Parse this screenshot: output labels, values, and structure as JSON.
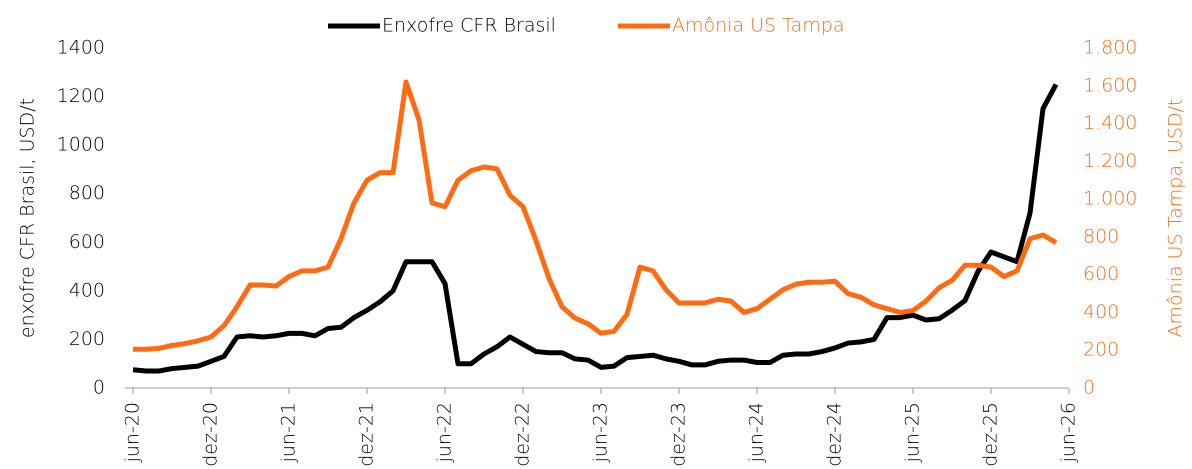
{
  "chart_data": {
    "type": "line",
    "categories": [
      "jun-20",
      null,
      null,
      null,
      null,
      null,
      "dez-20",
      null,
      null,
      null,
      null,
      null,
      "jun-21",
      null,
      null,
      null,
      null,
      null,
      "dez-21",
      null,
      null,
      null,
      null,
      null,
      "jun-22",
      null,
      null,
      null,
      null,
      null,
      "dez-22",
      null,
      null,
      null,
      null,
      null,
      "jun-23",
      null,
      null,
      null,
      null,
      null,
      "dez-23",
      null,
      null,
      null,
      null,
      null,
      "jun-24",
      null,
      null,
      null,
      null,
      null,
      "dez-24",
      null,
      null,
      null,
      null,
      null,
      "jun-25",
      null,
      null,
      null,
      null,
      null,
      "dez-25",
      null,
      null,
      null,
      null,
      null,
      "jun-26"
    ],
    "series": [
      {
        "name": "Enxofre CFR Brasil",
        "color": "#000000",
        "axis": "y",
        "values": [
          75,
          70,
          70,
          80,
          85,
          90,
          110,
          130,
          210,
          215,
          210,
          215,
          225,
          225,
          215,
          245,
          250,
          290,
          320,
          355,
          400,
          520,
          520,
          520,
          430,
          100,
          100,
          140,
          170,
          210,
          180,
          150,
          145,
          145,
          120,
          115,
          85,
          90,
          125,
          130,
          135,
          120,
          110,
          95,
          95,
          110,
          115,
          115,
          105,
          105,
          135,
          140,
          140,
          150,
          165,
          185,
          190,
          200,
          290,
          290,
          300,
          280,
          285,
          320,
          360,
          480,
          560,
          540,
          520,
          720,
          1150,
          1250,
          null
        ]
      },
      {
        "name": "Amônia US Tampa",
        "color": "#ff6a13",
        "axis": "y2",
        "values": [
          205,
          205,
          210,
          225,
          235,
          250,
          270,
          330,
          430,
          545,
          545,
          540,
          590,
          620,
          620,
          640,
          790,
          980,
          1100,
          1140,
          1140,
          1620,
          1420,
          980,
          960,
          1100,
          1150,
          1170,
          1160,
          1020,
          960,
          780,
          580,
          430,
          370,
          340,
          290,
          300,
          390,
          640,
          620,
          520,
          450,
          450,
          450,
          470,
          460,
          400,
          420,
          470,
          520,
          550,
          560,
          560,
          565,
          500,
          480,
          440,
          420,
          400,
          410,
          460,
          530,
          570,
          650,
          650,
          640,
          590,
          620,
          790,
          810,
          770,
          null
        ]
      }
    ],
    "ylabel": "enxofre CFR Brasil, USD/t",
    "y2label": "Amônia US Tampa, USD/t",
    "ylim": [
      0,
      1400
    ],
    "yticks": [
      0,
      200,
      400,
      600,
      800,
      1000,
      1200,
      1400
    ],
    "y2lim": [
      0,
      1800
    ],
    "y2ticks": [
      0,
      200,
      400,
      600,
      800,
      {
        "value": 1000,
        "label": "1.000"
      },
      {
        "value": 1200,
        "label": "1.200"
      },
      {
        "value": 1400,
        "label": "1.400"
      },
      {
        "value": 1600,
        "label": "1.600"
      },
      {
        "value": 1800,
        "label": "1.800"
      }
    ],
    "grid": false,
    "legend": "top"
  }
}
